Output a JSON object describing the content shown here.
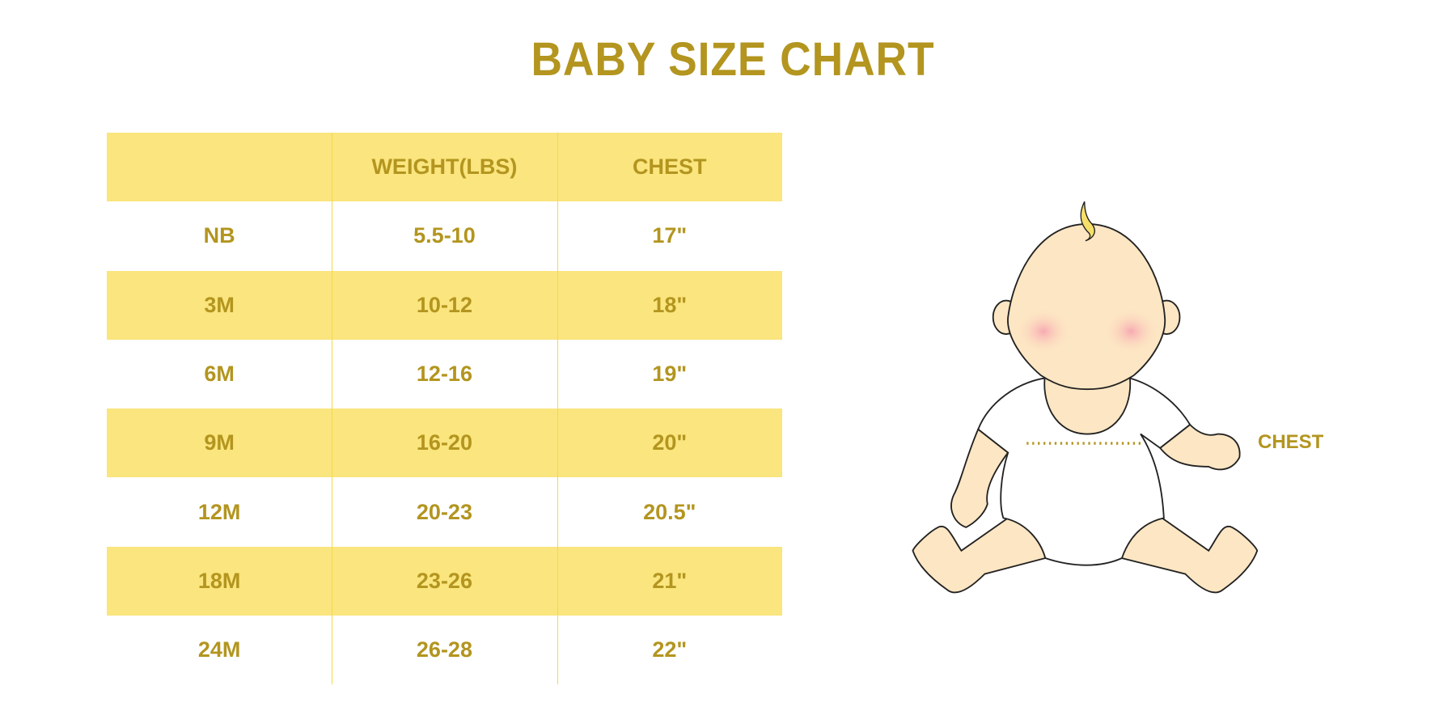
{
  "title": "BABY SIZE CHART",
  "table": {
    "headers": [
      "",
      "WEIGHT(LBS)",
      "CHEST"
    ],
    "rows": [
      [
        "NB",
        "5.5-10",
        "17\""
      ],
      [
        "3M",
        "10-12",
        "18\""
      ],
      [
        "6M",
        "12-16",
        "19\""
      ],
      [
        "9M",
        "16-20",
        "20\""
      ],
      [
        "12M",
        "20-23",
        "20.5\""
      ],
      [
        "18M",
        "23-26",
        "21\""
      ],
      [
        "24M",
        "26-28",
        "22\""
      ]
    ]
  },
  "illustration": {
    "chest_label": "CHEST"
  },
  "colors": {
    "text": "#b3951f",
    "band": "#fae57e",
    "skin": "#fde6c3",
    "cheek": "#f8b8be"
  }
}
